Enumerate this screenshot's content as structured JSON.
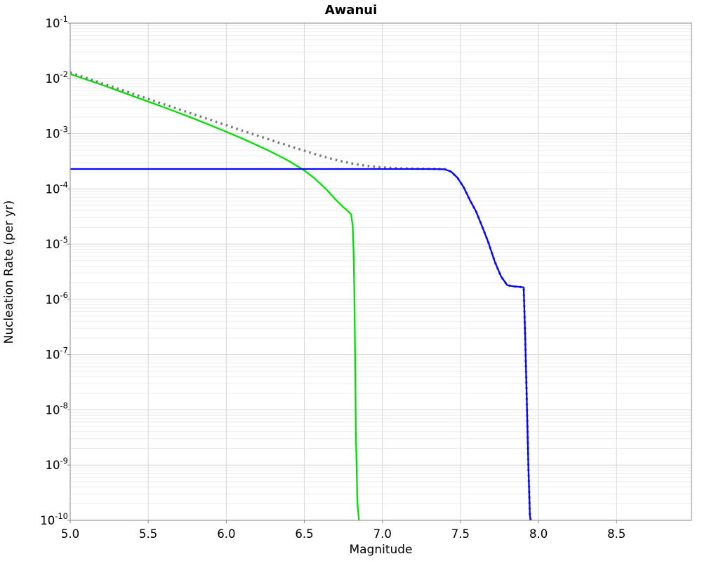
{
  "chart_data": {
    "type": "line",
    "title": "Awanui",
    "xlabel": "Magnitude",
    "ylabel": "Nucleation Rate (per yr)",
    "xlim": [
      5.0,
      8.98
    ],
    "ylim": [
      1e-10,
      0.1
    ],
    "x_ticks": [
      5.0,
      5.5,
      6.0,
      6.5,
      7.0,
      7.5,
      8.0,
      8.5
    ],
    "y_tick_exponents": [
      -1,
      -2,
      -3,
      -4,
      -5,
      -6,
      -7,
      -8,
      -9,
      -10
    ],
    "grid": true,
    "legend_position": "none",
    "background_color": "#ffffff",
    "major_grid_color": "#d6d6d6",
    "minor_grid_color": "#ededed",
    "border_color": "#9a9a9a",
    "series": [
      {
        "name": "green-solid-curve",
        "color": "#00dd00",
        "style": "solid",
        "width": 2.3,
        "points": [
          [
            5.0,
            0.012
          ],
          [
            5.1,
            0.0096
          ],
          [
            5.2,
            0.0077
          ],
          [
            5.3,
            0.0061
          ],
          [
            5.4,
            0.0048
          ],
          [
            5.5,
            0.0038
          ],
          [
            5.6,
            0.003
          ],
          [
            5.7,
            0.00235
          ],
          [
            5.8,
            0.00183
          ],
          [
            5.9,
            0.00141
          ],
          [
            6.0,
            0.00108
          ],
          [
            6.1,
            0.00082
          ],
          [
            6.2,
            0.00061
          ],
          [
            6.3,
            0.00045
          ],
          [
            6.4,
            0.00032
          ],
          [
            6.5,
            0.000215
          ],
          [
            6.55,
            0.000168
          ],
          [
            6.6,
            0.000126
          ],
          [
            6.65,
            9.2e-05
          ],
          [
            6.7,
            6.4e-05
          ],
          [
            6.75,
            4.65e-05
          ],
          [
            6.78,
            3.95e-05
          ],
          [
            6.8,
            3.45e-05
          ],
          [
            6.81,
            2.1e-05
          ],
          [
            6.815,
            8e-06
          ],
          [
            6.82,
            1.5e-06
          ],
          [
            6.825,
            1e-07
          ],
          [
            6.83,
            4e-09
          ],
          [
            6.84,
            2e-10
          ],
          [
            6.85,
            1e-10
          ]
        ]
      },
      {
        "name": "gray-dotted-curve",
        "color": "#787878",
        "style": "dotted",
        "width": 3.4,
        "points": [
          [
            5.0,
            0.0128
          ],
          [
            5.2,
            0.0082
          ],
          [
            5.4,
            0.0053
          ],
          [
            5.6,
            0.0034
          ],
          [
            5.8,
            0.0022
          ],
          [
            6.0,
            0.00142
          ],
          [
            6.2,
            0.00092
          ],
          [
            6.4,
            0.0006
          ],
          [
            6.5,
            0.00049
          ],
          [
            6.6,
            0.0004
          ],
          [
            6.7,
            0.000335
          ],
          [
            6.8,
            0.00029
          ],
          [
            6.9,
            0.00026
          ],
          [
            7.0,
            0.000245
          ],
          [
            7.1,
            0.000236
          ],
          [
            7.2,
            0.000232
          ],
          [
            7.3,
            0.00023
          ],
          [
            7.4,
            0.000228
          ],
          [
            7.44,
            0.000205
          ],
          [
            7.48,
            0.00016
          ],
          [
            7.52,
            0.000108
          ],
          [
            7.56,
            6.3e-05
          ],
          [
            7.6,
            3.9e-05
          ],
          [
            7.64,
            2.05e-05
          ],
          [
            7.68,
            1.05e-05
          ],
          [
            7.72,
            4.8e-06
          ],
          [
            7.76,
            2.6e-06
          ],
          [
            7.8,
            1.8e-06
          ],
          [
            7.84,
            1.72e-06
          ],
          [
            7.88,
            1.68e-06
          ],
          [
            7.905,
            1.65e-06
          ],
          [
            7.915,
            2e-07
          ],
          [
            7.925,
            1.5e-08
          ],
          [
            7.935,
            1e-09
          ],
          [
            7.945,
            1.2e-10
          ],
          [
            7.95,
            1e-10
          ]
        ]
      },
      {
        "name": "blue-solid-curve",
        "color": "#0404ff",
        "style": "solid",
        "width": 2.3,
        "points": [
          [
            5.0,
            0.000229
          ],
          [
            6.0,
            0.000229
          ],
          [
            6.5,
            0.000229
          ],
          [
            7.0,
            0.000229
          ],
          [
            7.2,
            0.000229
          ],
          [
            7.35,
            0.000228
          ],
          [
            7.4,
            0.000226
          ],
          [
            7.44,
            0.000205
          ],
          [
            7.48,
            0.00016
          ],
          [
            7.52,
            0.000108
          ],
          [
            7.56,
            6.3e-05
          ],
          [
            7.6,
            3.9e-05
          ],
          [
            7.64,
            2.05e-05
          ],
          [
            7.68,
            1.05e-05
          ],
          [
            7.72,
            4.8e-06
          ],
          [
            7.76,
            2.6e-06
          ],
          [
            7.8,
            1.8e-06
          ],
          [
            7.84,
            1.72e-06
          ],
          [
            7.88,
            1.68e-06
          ],
          [
            7.905,
            1.65e-06
          ],
          [
            7.915,
            2e-07
          ],
          [
            7.925,
            1.5e-08
          ],
          [
            7.935,
            1e-09
          ],
          [
            7.945,
            1.2e-10
          ],
          [
            7.95,
            1e-10
          ]
        ]
      }
    ]
  }
}
